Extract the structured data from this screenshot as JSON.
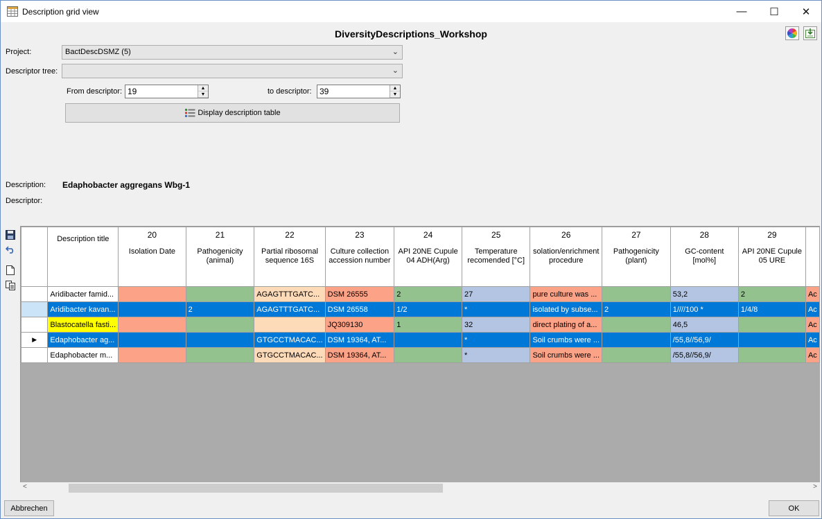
{
  "window": {
    "title": "Description grid view",
    "minimize": "—",
    "maximize": "☐",
    "close": "✕"
  },
  "heading": "DiversityDescriptions_Workshop",
  "toolbar_icons": [
    "color-wheel-icon",
    "export-icon"
  ],
  "form": {
    "project_label": "Project:",
    "project_value": "BactDescDSMZ (5)",
    "descriptor_tree_label": "Descriptor tree:",
    "descriptor_tree_value": "",
    "from_label": "From descriptor:",
    "from_value": "19",
    "to_label": "to descriptor:",
    "to_value": "39",
    "display_button": "Display description table"
  },
  "info": {
    "description_label": "Description:",
    "description_value": "Edaphobacter aggregans Wbg-1",
    "descriptor_label": "Descriptor:"
  },
  "grid": {
    "columns": [
      {
        "num": "",
        "caption": "Description title"
      },
      {
        "num": "20",
        "caption": "Isolation Date"
      },
      {
        "num": "21",
        "caption": "Pathogenicity (animal)"
      },
      {
        "num": "22",
        "caption": "Partial ribosomal sequence 16S"
      },
      {
        "num": "23",
        "caption": "Culture collection accession number"
      },
      {
        "num": "24",
        "caption": "API 20NE Cupule 04 ADH(Arg)"
      },
      {
        "num": "25",
        "caption": "Temperature recomended [°C]"
      },
      {
        "num": "26",
        "caption": "solation/enrichment procedure"
      },
      {
        "num": "27",
        "caption": "Pathogenicity (plant)"
      },
      {
        "num": "28",
        "caption": "GC-content [mol%]"
      },
      {
        "num": "29",
        "caption": "API 20NE Cupule 05 URE"
      },
      {
        "num": "",
        "caption": ""
      }
    ],
    "rows": [
      {
        "marker": "",
        "cells": [
          "Aridibacter famid...",
          "",
          "",
          "AGAGTTTGATC...",
          "DSM 26555",
          "2",
          "27",
          "pure culture was ...",
          "",
          "53,2",
          "2",
          "Ac"
        ]
      },
      {
        "marker": "",
        "cells": [
          "Aridibacter kavan...",
          "",
          "2",
          "AGAGTTTGATC...",
          "DSM 26558",
          "1/2",
          "*",
          "isolated by subse...",
          "2",
          "1////100 *",
          "1/4/8",
          "Ac"
        ]
      },
      {
        "marker": "",
        "cells": [
          "Blastocatella fasti...",
          "",
          "",
          "",
          "JQ309130",
          "1",
          "32",
          "direct plating of a...",
          "",
          "46,5",
          "",
          "Ac"
        ]
      },
      {
        "marker": "▶",
        "cells": [
          "Edaphobacter ag...",
          "",
          "",
          "GTGCCTMACAC...",
          "DSM 19364, AT...",
          "",
          "*",
          "Soil crumbs were ...",
          "",
          "/55,8//56,9/",
          "",
          "Ac"
        ]
      },
      {
        "marker": "",
        "cells": [
          "Edaphobacter m...",
          "",
          "",
          "GTGCCTMACAC...",
          " DSM 19364, AT...",
          "",
          "*",
          "Soil crumbs were ...",
          "",
          "/55,8//56,9/",
          "",
          "Ac"
        ]
      }
    ]
  },
  "buttons": {
    "cancel": "Abbrechen",
    "ok": "OK"
  },
  "scroll": {
    "left": "<",
    "right": ">"
  }
}
